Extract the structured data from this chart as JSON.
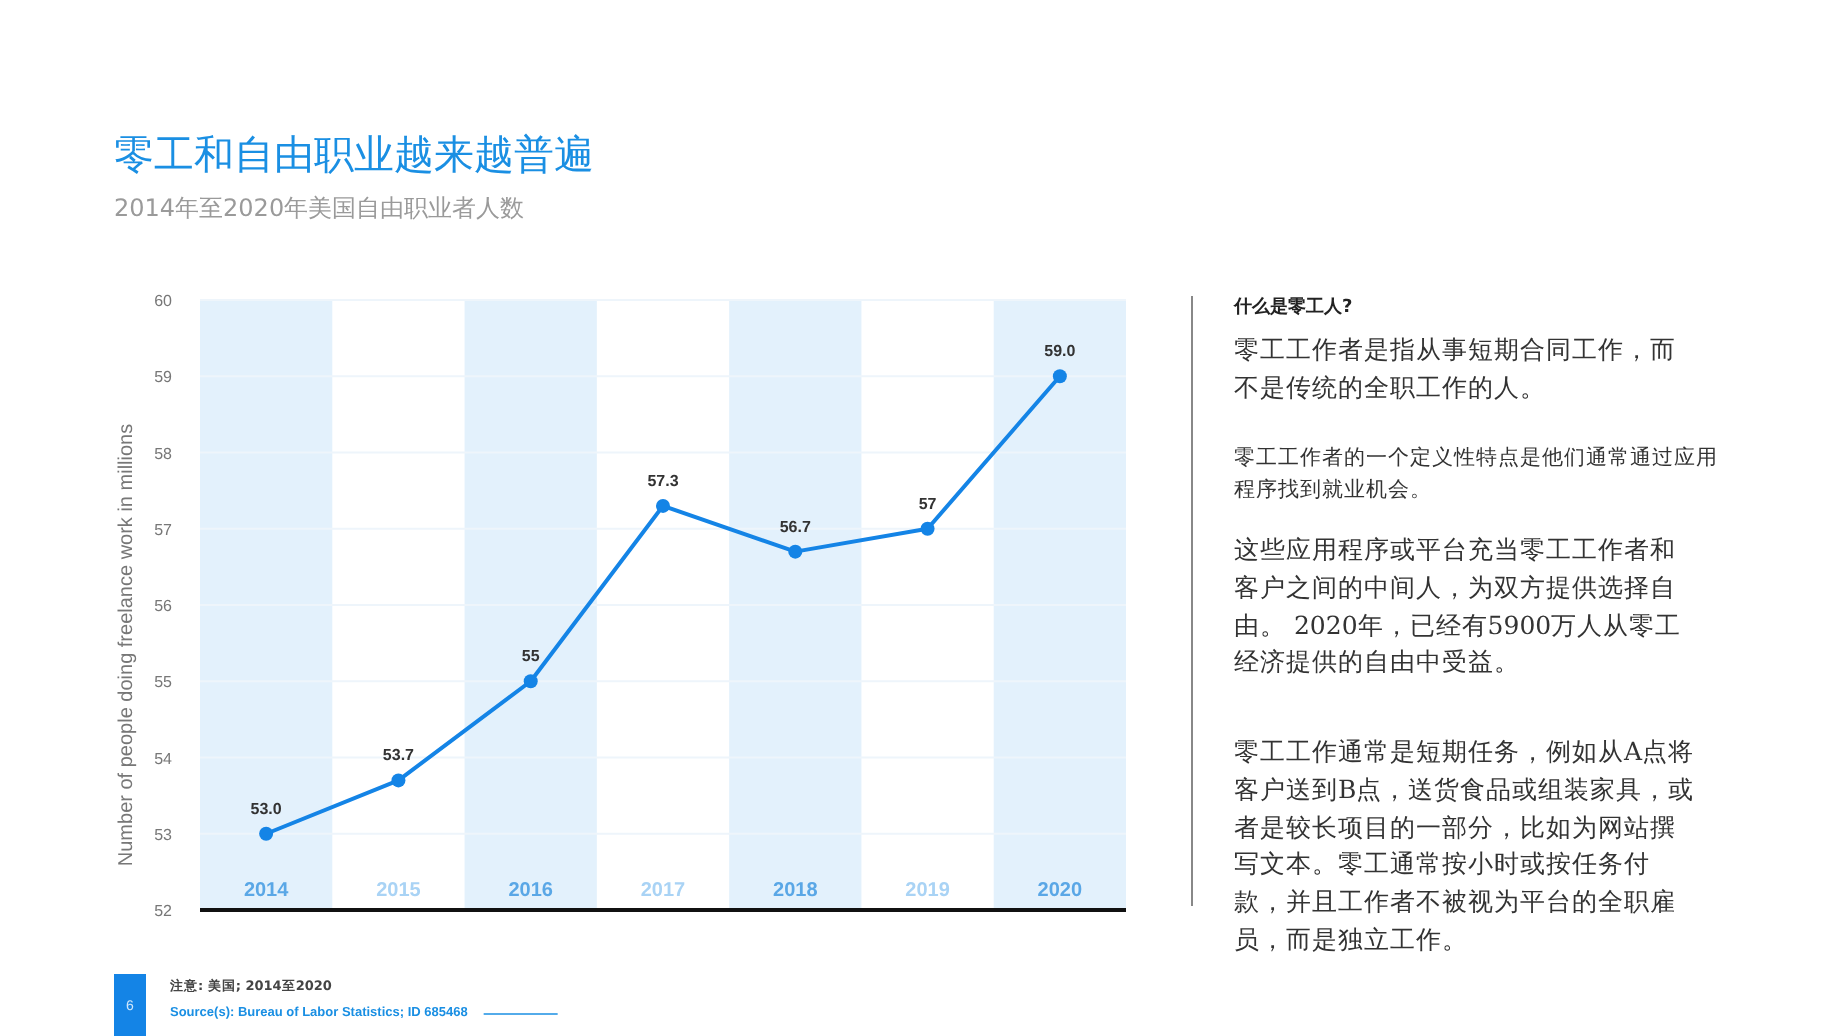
{
  "chart_data": [
    {
      "type": "line",
      "title": "零工和自由职业越来越普遍",
      "subtitle": "2014年至2020年美国自由职业者人数",
      "ylabel": "Number of people doing freelance work in millions",
      "categories": [
        "2014",
        "2015",
        "2016",
        "2017",
        "2018",
        "2019",
        "2020"
      ],
      "values": [
        53,
        53.7,
        55,
        57.3,
        56.7,
        57,
        59
      ],
      "value_labels": [
        "53.0",
        "53.7",
        "55",
        "57.3",
        "56.7",
        "57",
        "59.0"
      ],
      "color": "#1484e6",
      "marker": "circle",
      "grid": "y",
      "ylim": [
        52,
        60
      ],
      "yticks": [
        52,
        53,
        54,
        55,
        56,
        57,
        58,
        59,
        60
      ],
      "annotations": [
        "6",
        "注意: 美国; 2014至2020",
        "Source(s): Bureau of Labor Statistics; ID 685468"
      ]
    },
    {
      "type": "other",
      "title": "什么是零工人?",
      "annotations": [
        "零工工作者是指从事短期合同工作，而不是传统的全职工作的人。",
        "零工工作者的一个定义性特点是他们通常通过应用程序找到就业机会。",
        "这些应用程序或平台充当零工工作者和客户之间的中间人，为双方提供选择自由。 2020年，已经有5900万人从零工经济提供的自由中受益。",
        "零工工作通常是短期任务，例如从A点将客户送到B点，送货食品或组装家具，或者是较长项目的一部分，比如为网站撰写文本。零工通常按小时或按任务付款，并且工作者不被视为平台的全职雇员，而是独立工作。"
      ]
    }
  ]
}
